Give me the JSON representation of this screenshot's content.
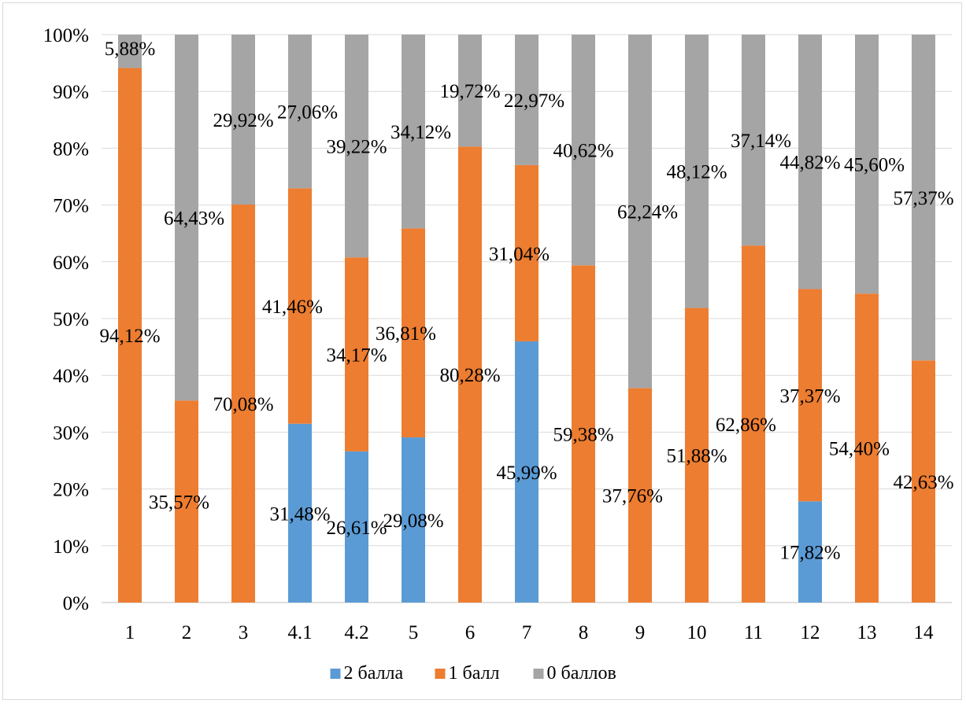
{
  "chart_data": {
    "type": "bar",
    "stacked": "percent",
    "categories": [
      "1",
      "2",
      "3",
      "4.1",
      "4.2",
      "5",
      "6",
      "7",
      "8",
      "9",
      "10",
      "11",
      "12",
      "13",
      "14"
    ],
    "series": [
      {
        "name": "2 балла",
        "color": "#5b9bd5",
        "values": [
          0,
          0,
          0,
          31.48,
          26.61,
          29.08,
          0,
          45.99,
          0,
          0,
          0,
          0,
          17.82,
          0,
          0
        ],
        "labels": [
          "",
          "",
          "",
          "31,48%",
          "26,61%",
          "29,08%",
          "",
          "45,99%",
          "",
          "",
          "",
          "",
          "17,82%",
          "",
          ""
        ]
      },
      {
        "name": "1 балл",
        "color": "#ed7d31",
        "values": [
          94.12,
          35.57,
          70.08,
          41.46,
          34.17,
          36.81,
          80.28,
          31.04,
          59.38,
          37.76,
          51.88,
          62.86,
          37.37,
          54.4,
          42.63
        ],
        "labels": [
          "94,12%",
          "35,57%",
          "70,08%",
          "41,46%",
          "34,17%",
          "36,81%",
          "80,28%",
          "31,04%",
          "59,38%",
          "37,76%",
          "51,88%",
          "62,86%",
          "37,37%",
          "54,40%",
          "42,63%"
        ]
      },
      {
        "name": "0 баллов",
        "color": "#a5a5a5",
        "values": [
          5.88,
          64.43,
          29.92,
          27.06,
          39.22,
          34.12,
          19.72,
          22.97,
          40.62,
          62.24,
          48.12,
          37.14,
          44.82,
          45.6,
          57.37
        ],
        "labels": [
          "5,88%",
          "64,43%",
          "29,92%",
          "27,06%",
          "39,22%",
          "34,12%",
          "19,72%",
          "22,97%",
          "40,62%",
          "62,24%",
          "48,12%",
          "37,14%",
          "44,82%",
          "45,60%",
          "57,37%"
        ]
      }
    ],
    "yticks": [
      "0%",
      "10%",
      "20%",
      "30%",
      "40%",
      "50%",
      "60%",
      "70%",
      "80%",
      "90%",
      "100%"
    ],
    "ylim": [
      0,
      100
    ],
    "grid": true,
    "legend": "bottom"
  }
}
